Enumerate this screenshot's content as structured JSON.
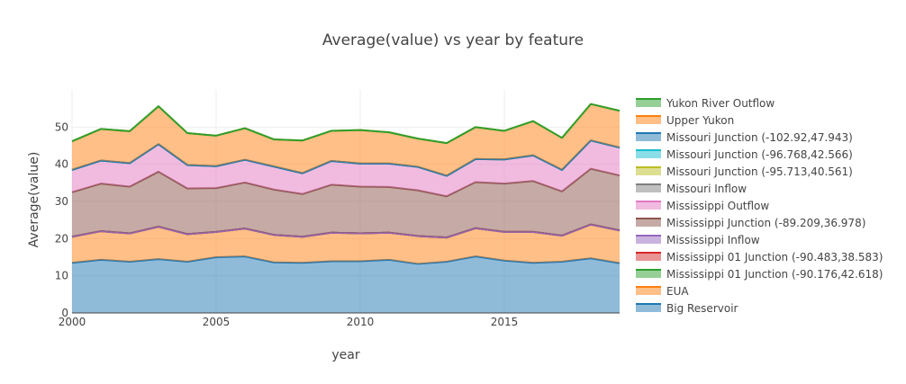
{
  "chart_data": {
    "type": "area",
    "stacked": true,
    "title": "Average(value) vs year by feature",
    "xlabel": "year",
    "ylabel": "Average(value)",
    "xlim": [
      2000,
      2019
    ],
    "ylim": [
      0,
      60
    ],
    "x_ticks": [
      2000,
      2005,
      2010,
      2015
    ],
    "y_ticks": [
      0,
      10,
      20,
      30,
      40,
      50
    ],
    "grid": true,
    "legend_placement": "right",
    "x": [
      2000,
      2001,
      2002,
      2003,
      2004,
      2005,
      2006,
      2007,
      2008,
      2009,
      2010,
      2011,
      2012,
      2013,
      2014,
      2015,
      2016,
      2017,
      2018,
      2019
    ],
    "series": [
      {
        "name": "Big Reservoir",
        "color": "#1f77b4",
        "values": [
          13.5,
          14.3,
          13.8,
          14.5,
          13.8,
          15.0,
          15.2,
          13.6,
          13.5,
          13.9,
          13.9,
          14.3,
          13.2,
          13.8,
          15.2,
          14.1,
          13.5,
          13.8,
          14.7,
          13.4
        ]
      },
      {
        "name": "EUA",
        "color": "#ff7f0e",
        "values": [
          7.0,
          7.7,
          7.6,
          8.7,
          7.4,
          6.8,
          7.5,
          7.4,
          7.0,
          7.7,
          7.5,
          7.3,
          7.5,
          6.5,
          7.6,
          7.7,
          8.3,
          7.0,
          9.1,
          8.8
        ]
      },
      {
        "name": "Mississippi 01 Junction (-90.176,42.618)",
        "color": "#2ca02c",
        "values": [
          0,
          0,
          0,
          0,
          0,
          0,
          0,
          0,
          0,
          0,
          0,
          0,
          0,
          0,
          0,
          0,
          0,
          0,
          0,
          0
        ]
      },
      {
        "name": "Mississippi 01 Junction (-90.483,38.583)",
        "color": "#d62728",
        "values": [
          0,
          0,
          0,
          0,
          0,
          0,
          0,
          0,
          0,
          0,
          0,
          0,
          0,
          0,
          0,
          0,
          0,
          0,
          0,
          0
        ]
      },
      {
        "name": "Mississippi Inflow",
        "color": "#9467bd",
        "values": [
          0,
          0,
          0,
          0,
          0,
          0,
          0,
          0,
          0,
          0,
          0,
          0,
          0,
          0,
          0,
          0,
          0,
          0,
          0,
          0
        ]
      },
      {
        "name": "Mississippi Junction (-89.209,36.978)",
        "color": "#8c564b",
        "values": [
          12.0,
          12.8,
          12.6,
          14.8,
          12.3,
          11.8,
          12.4,
          12.2,
          11.5,
          12.9,
          12.6,
          12.3,
          12.3,
          11.1,
          12.4,
          13.0,
          13.7,
          11.9,
          15.0,
          14.8
        ]
      },
      {
        "name": "Mississippi Outflow",
        "color": "#e377c2",
        "values": [
          6.0,
          6.2,
          6.3,
          7.4,
          6.3,
          5.9,
          6.1,
          6.2,
          5.6,
          6.4,
          6.2,
          6.3,
          6.3,
          5.5,
          6.2,
          6.5,
          6.9,
          5.8,
          7.6,
          7.5
        ]
      },
      {
        "name": "Missouri Inflow",
        "color": "#7f7f7f",
        "values": [
          0,
          0,
          0,
          0,
          0,
          0,
          0,
          0,
          0,
          0,
          0,
          0,
          0,
          0,
          0,
          0,
          0,
          0,
          0,
          0
        ]
      },
      {
        "name": "Missouri Junction (-95.713,40.561)",
        "color": "#bcbd22",
        "values": [
          0,
          0,
          0,
          0,
          0,
          0,
          0,
          0,
          0,
          0,
          0,
          0,
          0,
          0,
          0,
          0,
          0,
          0,
          0,
          0
        ]
      },
      {
        "name": "Missouri Junction (-96.768,42.566)",
        "color": "#17becf",
        "values": [
          0,
          0,
          0,
          0,
          0,
          0,
          0,
          0,
          0,
          0,
          0,
          0,
          0,
          0,
          0,
          0,
          0,
          0,
          0,
          0
        ]
      },
      {
        "name": "Missouri Junction (-102.92,47.943)",
        "color": "#1f77b4",
        "values": [
          0,
          0,
          0,
          0,
          0,
          0,
          0,
          0,
          0,
          0,
          0,
          0,
          0,
          0,
          0,
          0,
          0,
          0,
          0,
          0
        ]
      },
      {
        "name": "Upper Yukon",
        "color": "#ff7f0e",
        "values": [
          7.7,
          8.5,
          8.6,
          10.2,
          8.6,
          8.2,
          8.5,
          7.3,
          8.8,
          8.1,
          9.0,
          8.4,
          7.6,
          8.8,
          8.6,
          7.7,
          9.2,
          8.6,
          9.8,
          9.9
        ]
      },
      {
        "name": "Yukon River Outflow",
        "color": "#2ca02c",
        "values": [
          0,
          0,
          0,
          0,
          0,
          0,
          0,
          0,
          0,
          0,
          0,
          0,
          0,
          0,
          0,
          0,
          0,
          0,
          0,
          0
        ]
      }
    ]
  }
}
